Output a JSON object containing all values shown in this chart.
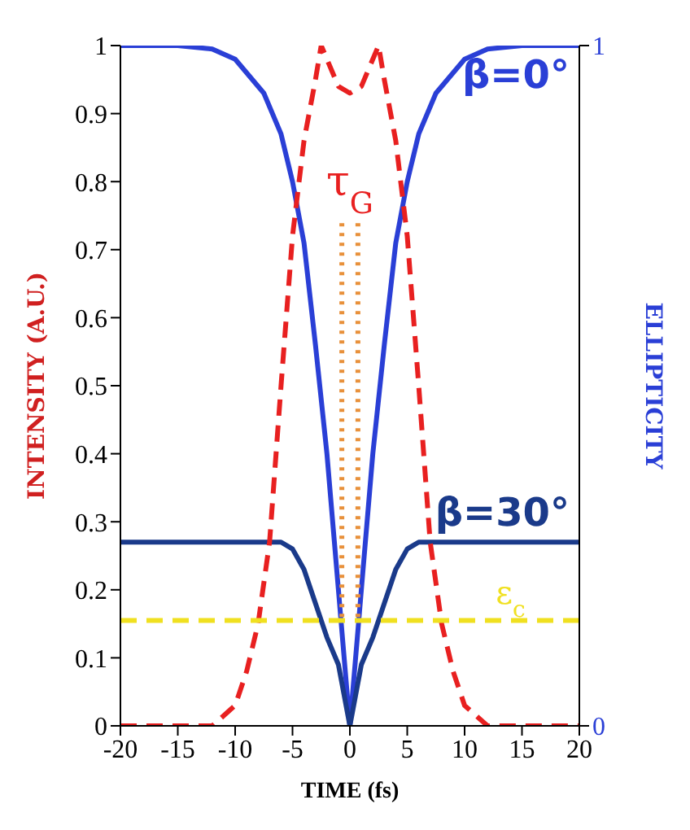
{
  "chart_data": {
    "type": "line",
    "xlabel": "TIME (fs)",
    "ylabel": "INTENSITY (A.U.)",
    "y2label": "ELLIPTICITY",
    "xlim": [
      -20,
      20
    ],
    "xticks": [
      -20,
      -15,
      -10,
      -5,
      0,
      5,
      10,
      15,
      20
    ],
    "ylim": [
      0,
      1
    ],
    "yticks": [
      0,
      0.1,
      0.2,
      0.3,
      0.4,
      0.5,
      0.6,
      0.7,
      0.8,
      0.9,
      1
    ],
    "y2lim": [
      0,
      1
    ],
    "y2ticks": [
      0,
      1
    ],
    "marker": "none",
    "series": [
      {
        "name": "β=0°",
        "color": "#2a3fd6",
        "axis": "y2",
        "line_style": "solid",
        "x": [
          -20,
          -15,
          -12,
          -10,
          -7.5,
          -6,
          -5,
          -4,
          -3,
          -2,
          -1,
          0,
          1,
          2,
          3,
          4,
          5,
          6,
          7.5,
          10,
          12,
          15,
          20
        ],
        "values": [
          1,
          1,
          0.995,
          0.98,
          0.93,
          0.87,
          0.8,
          0.71,
          0.56,
          0.4,
          0.2,
          0,
          0.2,
          0.4,
          0.56,
          0.71,
          0.8,
          0.87,
          0.93,
          0.98,
          0.995,
          1,
          1
        ]
      },
      {
        "name": "β=30°",
        "color": "#1a3a8a",
        "axis": "y2",
        "line_style": "solid",
        "x": [
          -20,
          -10,
          -6,
          -5,
          -4,
          -3,
          -2,
          -1,
          0,
          1,
          2,
          3,
          4,
          5,
          6,
          10,
          20
        ],
        "values": [
          0.27,
          0.27,
          0.27,
          0.26,
          0.23,
          0.18,
          0.13,
          0.09,
          0,
          0.09,
          0.13,
          0.18,
          0.23,
          0.26,
          0.27,
          0.27,
          0.27
        ]
      },
      {
        "color": "#e82020",
        "line_style": "dashed",
        "x": [
          -20,
          -12,
          -10,
          -9,
          -8,
          -7,
          -6,
          -5,
          -4,
          -3,
          -2.5,
          -1,
          0,
          1,
          2.5,
          3,
          4,
          5,
          6,
          7,
          8,
          9,
          10,
          12,
          20
        ],
        "values": [
          0,
          0,
          0.03,
          0.08,
          0.15,
          0.27,
          0.5,
          0.72,
          0.86,
          0.95,
          1,
          0.94,
          0.93,
          0.94,
          1,
          0.95,
          0.86,
          0.72,
          0.5,
          0.27,
          0.15,
          0.08,
          0.03,
          0,
          0
        ]
      },
      {
        "color": "#e8903a",
        "line_style": "dotted",
        "x": [
          -0.7,
          -0.7
        ],
        "values": [
          0.16,
          0.74
        ]
      },
      {
        "color": "#e8903a",
        "line_style": "dotted",
        "x": [
          0.7,
          0.7
        ],
        "values": [
          0.16,
          0.74
        ]
      }
    ],
    "ref_lines": [
      {
        "axis": "y",
        "value": 0.155,
        "label": "ε$_{c}$",
        "color": "#f0e020",
        "line_style": "dashed"
      }
    ],
    "annotations": [
      "τ$_{G}$"
    ]
  }
}
